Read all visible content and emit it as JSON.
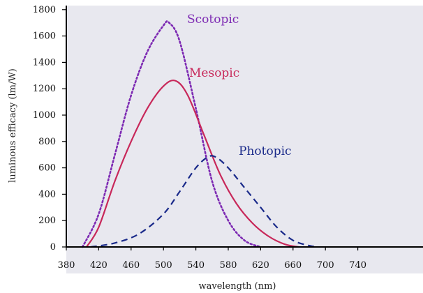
{
  "chart_data": {
    "type": "line",
    "title": "",
    "xlabel": "wavelength (nm)",
    "ylabel": "luminous efficacy (lm/W)",
    "xlim": [
      380,
      760
    ],
    "ylim": [
      0,
      1800
    ],
    "xticks": [
      380,
      420,
      460,
      500,
      540,
      580,
      620,
      660,
      700,
      740
    ],
    "yticks": [
      0,
      200,
      400,
      600,
      800,
      1000,
      1200,
      1400,
      1600,
      1800
    ],
    "grid": false,
    "legend": "inline labels",
    "plot_background": "#e8e8ef",
    "series": [
      {
        "name": "Scotopic",
        "color": "#7d2ab3",
        "line_style": "dotted",
        "x": [
          400,
          420,
          440,
          460,
          480,
          500,
          507,
          520,
          540,
          560,
          580,
          600,
          620
        ],
        "y": [
          0,
          250,
          700,
          1150,
          1480,
          1680,
          1700,
          1560,
          1050,
          500,
          200,
          50,
          0
        ]
      },
      {
        "name": "Mesopic",
        "color": "#c8285a",
        "line_style": "solid",
        "x": [
          405,
          420,
          440,
          460,
          480,
          500,
          515,
          530,
          550,
          570,
          590,
          610,
          630,
          650,
          667
        ],
        "y": [
          0,
          150,
          500,
          800,
          1050,
          1220,
          1260,
          1150,
          850,
          550,
          330,
          180,
          80,
          20,
          0
        ]
      },
      {
        "name": "Photopic",
        "color": "#1a2a8a",
        "line_style": "dashed",
        "x": [
          410,
          440,
          470,
          500,
          520,
          540,
          555,
          565,
          580,
          600,
          620,
          640,
          660,
          680,
          690
        ],
        "y": [
          0,
          30,
          100,
          250,
          420,
          600,
          683,
          680,
          600,
          450,
          300,
          150,
          50,
          10,
          0
        ]
      }
    ]
  }
}
